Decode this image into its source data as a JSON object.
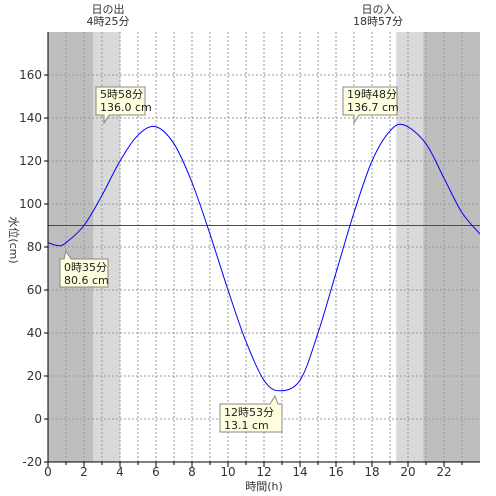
{
  "chart_data": {
    "type": "line",
    "title": "",
    "xlabel": "時間(h)",
    "ylabel": "水位(cm)",
    "xlim": [
      0,
      24
    ],
    "ylim": [
      -20,
      180
    ],
    "xticks": [
      "0",
      "2",
      "4",
      "6",
      "8",
      "10",
      "12",
      "14",
      "16",
      "18",
      "20",
      "22"
    ],
    "yticks": [
      "-20",
      "0",
      "20",
      "40",
      "60",
      "80",
      "100",
      "120",
      "140",
      "160"
    ],
    "grid": true,
    "reference_line": {
      "value": 90,
      "color": "#ff0000"
    },
    "line_color": "#0000ff",
    "series": [
      {
        "x": [
          0,
          0.58,
          1,
          2,
          3,
          4,
          5,
          5.97,
          7,
          8,
          9,
          10,
          11,
          12,
          12.88,
          14,
          15,
          16,
          17,
          18,
          19,
          19.8,
          21,
          22,
          23,
          24
        ],
        "values": [
          82,
          80.6,
          82,
          90,
          104,
          120,
          132,
          136.0,
          128,
          110,
          86,
          60,
          36,
          18,
          13.1,
          18,
          40,
          68,
          96,
          120,
          134,
          136.7,
          128,
          112,
          96,
          86
        ]
      }
    ],
    "shading": {
      "night_color": "#bebebe",
      "twilight_color": "#d9d9d9",
      "day_color": "#ffffff",
      "sunrise_hour": 4.42,
      "sunset_hour": 18.95
    },
    "annotations": {
      "sunrise_title": "日の出",
      "sunrise_time": "4時25分",
      "sunset_title": "日の入",
      "sunset_time": "18時57分",
      "high1_time": "5時58分",
      "high1_value": "136.0 cm",
      "high2_time": "19時48分",
      "high2_value": "136.7 cm",
      "low1_time": "0時35分",
      "low1_value": "80.6 cm",
      "low2_time": "12時53分",
      "low2_value": "13.1 cm"
    }
  }
}
